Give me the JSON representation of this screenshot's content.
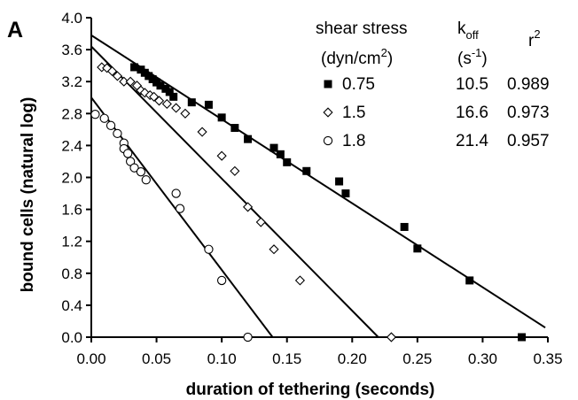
{
  "panel_label": "A",
  "chart_data": {
    "type": "scatter",
    "xlabel": "duration of tethering (seconds)",
    "ylabel": "bound cells (natural log)",
    "xlim": [
      0,
      0.35
    ],
    "ylim": [
      0,
      4.0
    ],
    "x_ticks": [
      "0.00",
      "0.05",
      "0.10",
      "0.15",
      "0.20",
      "0.25",
      "0.30",
      "0.35"
    ],
    "y_ticks": [
      "0.0",
      "0.4",
      "0.8",
      "1.2",
      "1.6",
      "2.0",
      "2.4",
      "2.8",
      "3.2",
      "3.6",
      "4.0"
    ],
    "legend": {
      "position": "top-right",
      "header_shear": [
        "shear stress",
        "(dyn/cm",
        "2",
        ")"
      ],
      "header_koff": [
        "k",
        "off",
        "(s",
        "-1",
        ")"
      ],
      "header_r2": [
        "r",
        "2"
      ]
    },
    "series": [
      {
        "shear_stress": "0.75",
        "koff": "10.5",
        "r2": "0.989",
        "marker": "filled-square",
        "fit_line": [
          [
            0.0,
            3.78
          ],
          [
            0.348,
            0.12
          ]
        ],
        "points": [
          [
            0.033,
            3.38
          ],
          [
            0.038,
            3.35
          ],
          [
            0.041,
            3.31
          ],
          [
            0.044,
            3.27
          ],
          [
            0.047,
            3.23
          ],
          [
            0.05,
            3.19
          ],
          [
            0.053,
            3.15
          ],
          [
            0.057,
            3.11
          ],
          [
            0.06,
            3.07
          ],
          [
            0.063,
            3.01
          ],
          [
            0.077,
            2.94
          ],
          [
            0.09,
            2.91
          ],
          [
            0.1,
            2.75
          ],
          [
            0.11,
            2.62
          ],
          [
            0.12,
            2.48
          ],
          [
            0.14,
            2.37
          ],
          [
            0.145,
            2.29
          ],
          [
            0.15,
            2.19
          ],
          [
            0.165,
            2.08
          ],
          [
            0.19,
            1.95
          ],
          [
            0.195,
            1.8
          ],
          [
            0.24,
            1.38
          ],
          [
            0.25,
            1.11
          ],
          [
            0.29,
            0.71
          ],
          [
            0.33,
            0.0
          ]
        ]
      },
      {
        "shear_stress": "1.5",
        "koff": "16.6",
        "r2": "0.973",
        "marker": "open-diamond",
        "fit_line": [
          [
            0.0,
            3.64
          ],
          [
            0.22,
            0.0
          ]
        ],
        "points": [
          [
            0.008,
            3.38
          ],
          [
            0.012,
            3.37
          ],
          [
            0.016,
            3.33
          ],
          [
            0.02,
            3.27
          ],
          [
            0.025,
            3.2
          ],
          [
            0.03,
            3.2
          ],
          [
            0.035,
            3.15
          ],
          [
            0.038,
            3.09
          ],
          [
            0.041,
            3.06
          ],
          [
            0.045,
            3.03
          ],
          [
            0.048,
            3.01
          ],
          [
            0.052,
            2.96
          ],
          [
            0.058,
            2.92
          ],
          [
            0.065,
            2.87
          ],
          [
            0.072,
            2.8
          ],
          [
            0.085,
            2.57
          ],
          [
            0.1,
            2.27
          ],
          [
            0.11,
            2.08
          ],
          [
            0.12,
            1.63
          ],
          [
            0.13,
            1.44
          ],
          [
            0.14,
            1.1
          ],
          [
            0.16,
            0.71
          ],
          [
            0.23,
            0.0
          ]
        ]
      },
      {
        "shear_stress": "1.8",
        "koff": "21.4",
        "r2": "0.957",
        "marker": "open-circle",
        "fit_line": [
          [
            0.0,
            3.0
          ],
          [
            0.139,
            0.0
          ]
        ],
        "points": [
          [
            0.003,
            2.79
          ],
          [
            0.01,
            2.74
          ],
          [
            0.015,
            2.65
          ],
          [
            0.02,
            2.55
          ],
          [
            0.025,
            2.43
          ],
          [
            0.025,
            2.36
          ],
          [
            0.028,
            2.3
          ],
          [
            0.03,
            2.2
          ],
          [
            0.033,
            2.12
          ],
          [
            0.038,
            2.07
          ],
          [
            0.042,
            1.97
          ],
          [
            0.065,
            1.8
          ],
          [
            0.068,
            1.61
          ],
          [
            0.09,
            1.1
          ],
          [
            0.1,
            0.71
          ],
          [
            0.12,
            0.0
          ]
        ]
      }
    ]
  }
}
